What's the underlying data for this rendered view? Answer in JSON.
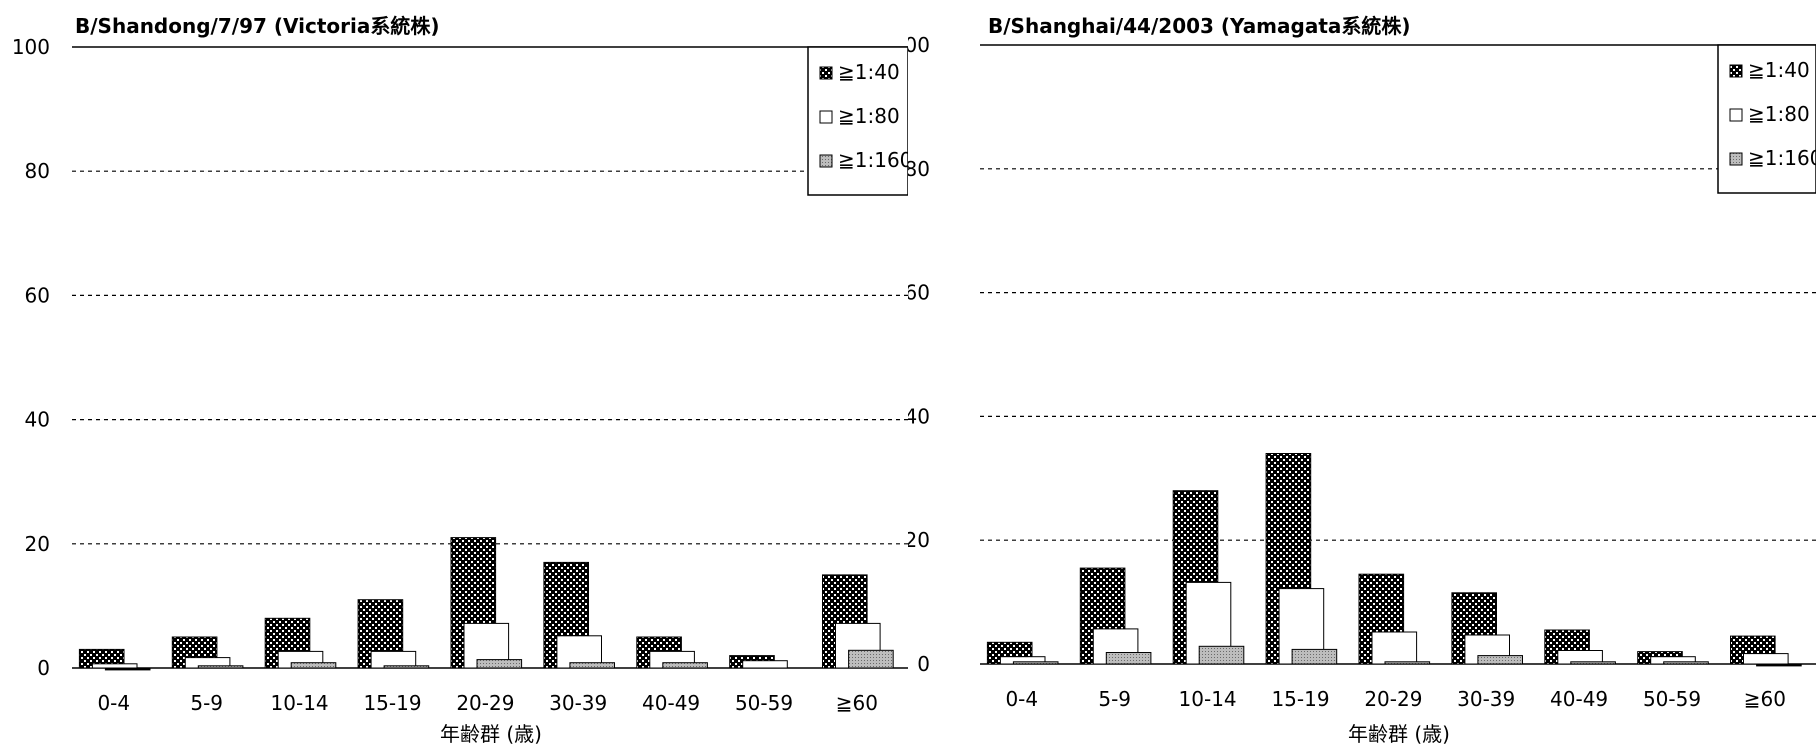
{
  "colors": {
    "ge40": "#000000",
    "ge80": "#ffffff",
    "ge160": "#bdbdbd",
    "grid": "#000000"
  },
  "chart_data": [
    {
      "type": "bar",
      "title": "B/Shandong/7/97 (Victoria系統株)",
      "xlabel": "年齢群 (歳)",
      "ylabel": "",
      "ylim": [
        0,
        100
      ],
      "yticks": [
        "0",
        "20",
        "40",
        "60",
        "80",
        "100"
      ],
      "grid": "dashed",
      "legend_position": "top-right",
      "categories": [
        "0-4",
        "5-9",
        "10-14",
        "15-19",
        "20-29",
        "30-39",
        "40-49",
        "50-59",
        "≧60"
      ],
      "series": [
        {
          "name": "≧1:40",
          "values": [
            3,
            5,
            8,
            11,
            21,
            17,
            5,
            2,
            15
          ]
        },
        {
          "name": "≧1:80",
          "values": [
            1,
            2,
            3,
            3,
            7.5,
            5.5,
            3,
            1.5,
            7.5
          ]
        },
        {
          "name": "≧1:160",
          "values": [
            0.5,
            1,
            1.5,
            1,
            2,
            1.5,
            1.5,
            0,
            3.5
          ]
        }
      ]
    },
    {
      "type": "bar",
      "title": "B/Shanghai/44/2003 (Yamagata系統株)",
      "xlabel": "年齢群 (歳)",
      "ylabel": "",
      "ylim": [
        0,
        100
      ],
      "yticks": [
        "0",
        "20",
        "40",
        "60",
        "80",
        "100"
      ],
      "grid": "dashed",
      "legend_position": "top-right",
      "categories": [
        "0-4",
        "5-9",
        "10-14",
        "15-19",
        "20-29",
        "30-39",
        "40-49",
        "50-59",
        "≧60"
      ],
      "series": [
        {
          "name": "≧1:40",
          "values": [
            3.5,
            15.5,
            28,
            34,
            14.5,
            11.5,
            5.5,
            2,
            4.5
          ]
        },
        {
          "name": "≧1:80",
          "values": [
            1.5,
            6,
            13.5,
            12.5,
            5.5,
            5,
            2.5,
            1.5,
            2
          ]
        },
        {
          "name": "≧1:160",
          "values": [
            1,
            2.5,
            3.5,
            3,
            1,
            2,
            1,
            1,
            0.5
          ]
        }
      ]
    }
  ]
}
